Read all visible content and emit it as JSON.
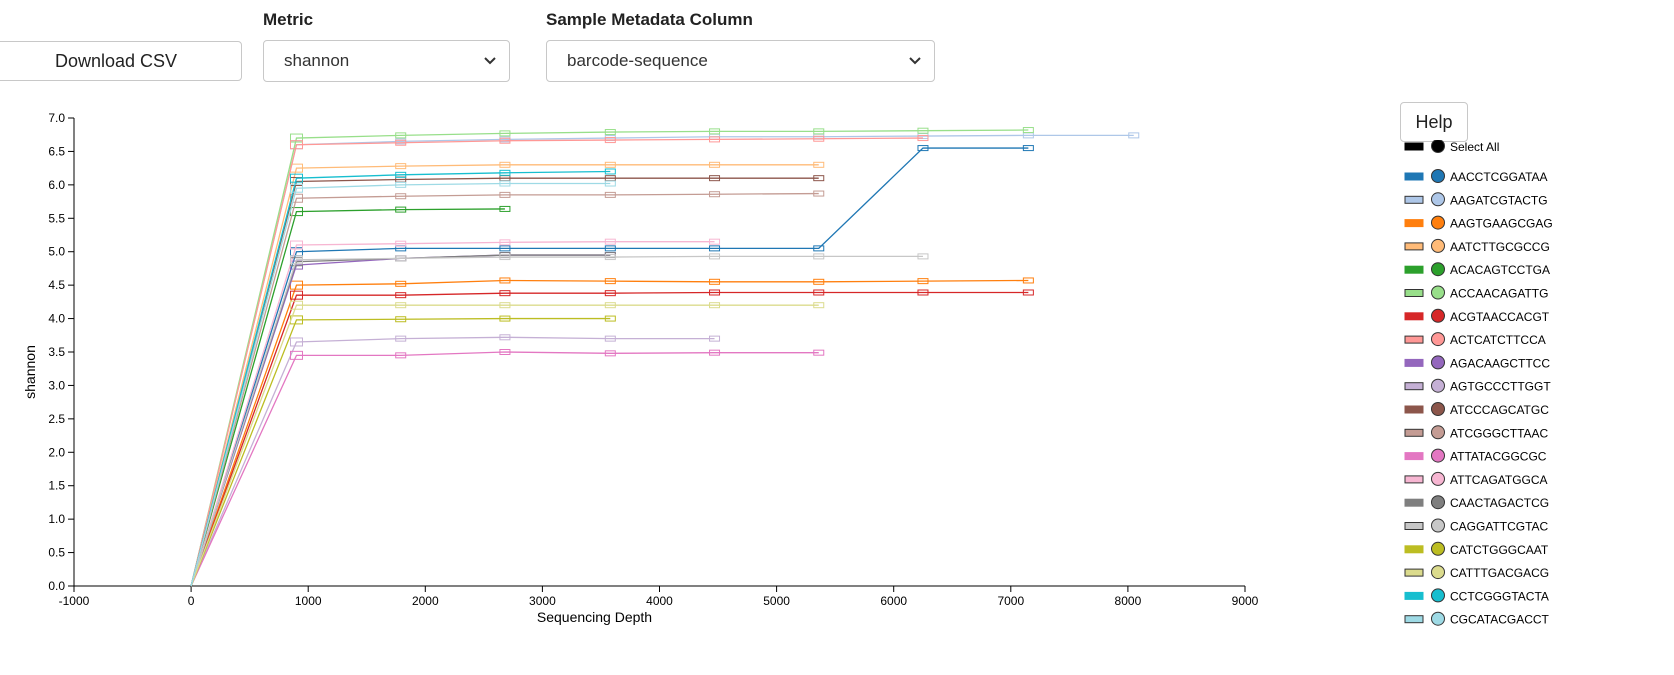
{
  "controls": {
    "download_label": "Download CSV",
    "metric_label": "Metric",
    "metric_value": "shannon",
    "metadata_label": "Sample Metadata Column",
    "metadata_value": "barcode-sequence",
    "help_label": "Help",
    "select_all_label": "Select All"
  },
  "chart_data": {
    "type": "line",
    "xlabel": "Sequencing Depth",
    "ylabel": "shannon",
    "xlim": [
      -1000,
      9000
    ],
    "ylim": [
      0,
      7
    ],
    "xticks": [
      "-1000",
      "0",
      "1000",
      "2000",
      "3000",
      "4000",
      "5000",
      "6000",
      "7000",
      "8000",
      "9000"
    ],
    "yticks": [
      "0.0",
      "0.5",
      "1.0",
      "1.5",
      "2.0",
      "2.5",
      "3.0",
      "3.5",
      "4.0",
      "4.5",
      "5.0",
      "5.5",
      "6.0",
      "6.5",
      "7.0"
    ],
    "depths": [
      0,
      900,
      1790,
      2680,
      3580,
      4470,
      5360,
      6250,
      7150,
      8050
    ],
    "legend_position": "right",
    "series": [
      {
        "name": "AACCTCGGATAA",
        "color": "#1f77b4",
        "light": false,
        "values": [
          0,
          5.0,
          5.05,
          5.05,
          5.05,
          5.05,
          5.05,
          6.55,
          6.55
        ]
      },
      {
        "name": "AAGATCGTACTG",
        "color": "#aec7e8",
        "light": true,
        "values": [
          0,
          6.6,
          6.65,
          6.68,
          6.7,
          6.72,
          6.72,
          6.73,
          6.74,
          6.74
        ]
      },
      {
        "name": "AAGTGAAGCGAG",
        "color": "#ff7f0e",
        "light": false,
        "values": [
          0,
          4.5,
          4.52,
          4.57,
          4.56,
          4.55,
          4.55,
          4.56,
          4.57
        ]
      },
      {
        "name": "AATCTTGCGCCG",
        "color": "#ffbb78",
        "light": true,
        "values": [
          0,
          6.25,
          6.28,
          6.3,
          6.3,
          6.3,
          6.3
        ]
      },
      {
        "name": "ACACAGTCCTGA",
        "color": "#2ca02c",
        "light": false,
        "values": [
          0,
          5.6,
          5.63,
          5.64
        ]
      },
      {
        "name": "ACCAACAGATTG",
        "color": "#98df8a",
        "light": true,
        "values": [
          0,
          6.7,
          6.74,
          6.77,
          6.79,
          6.8,
          6.8,
          6.81,
          6.82
        ]
      },
      {
        "name": "ACGTAACCACGT",
        "color": "#d62728",
        "light": false,
        "values": [
          0,
          4.35,
          4.35,
          4.38,
          4.38,
          4.39,
          4.39,
          4.39,
          4.39
        ]
      },
      {
        "name": "ACTCATCTTCCA",
        "color": "#ff9896",
        "light": true,
        "values": [
          0,
          6.6,
          6.63,
          6.66,
          6.67,
          6.68,
          6.69,
          6.7
        ]
      },
      {
        "name": "AGACAAGCTTCC",
        "color": "#9467bd",
        "light": false,
        "values": [
          0,
          4.8,
          4.9,
          4.95,
          4.95
        ]
      },
      {
        "name": "AGTGCCCTTGGT",
        "color": "#c5b0d5",
        "light": true,
        "values": [
          0,
          3.65,
          3.7,
          3.72,
          3.7,
          3.7
        ]
      },
      {
        "name": "ATCCCAGCATGC",
        "color": "#8c564b",
        "light": false,
        "values": [
          0,
          6.05,
          6.08,
          6.1,
          6.1,
          6.1,
          6.1
        ]
      },
      {
        "name": "ATCGGGCTTAAC",
        "color": "#c49c94",
        "light": true,
        "values": [
          0,
          5.8,
          5.83,
          5.85,
          5.85,
          5.86,
          5.87
        ]
      },
      {
        "name": "ATTATACGGCGC",
        "color": "#e377c2",
        "light": false,
        "values": [
          0,
          3.45,
          3.45,
          3.5,
          3.48,
          3.49,
          3.49
        ]
      },
      {
        "name": "ATTCAGATGGCA",
        "color": "#f7b6d2",
        "light": true,
        "values": [
          0,
          5.1,
          5.12,
          5.14,
          5.15,
          5.15
        ]
      },
      {
        "name": "CAACTAGACTCG",
        "color": "#7f7f7f",
        "light": false,
        "values": [
          0,
          4.85,
          4.9,
          4.95,
          4.95
        ]
      },
      {
        "name": "CAGGATTCGTAC",
        "color": "#c7c7c7",
        "light": true,
        "values": [
          0,
          4.88,
          4.9,
          4.92,
          4.92,
          4.93,
          4.93,
          4.93
        ]
      },
      {
        "name": "CATCTGGGCAAT",
        "color": "#bcbd22",
        "light": false,
        "values": [
          0,
          3.98,
          3.99,
          4.0,
          4.0
        ]
      },
      {
        "name": "CATTTGACGACG",
        "color": "#dbdb8d",
        "light": true,
        "values": [
          0,
          4.2,
          4.2,
          4.2,
          4.2,
          4.2,
          4.2
        ]
      },
      {
        "name": "CCTCGGGTACTA",
        "color": "#17becf",
        "light": false,
        "values": [
          0,
          6.1,
          6.15,
          6.18,
          6.2
        ]
      },
      {
        "name": "CGCATACGACCT",
        "color": "#9edae5",
        "light": true,
        "values": [
          0,
          5.95,
          6.0,
          6.02,
          6.02
        ]
      }
    ]
  }
}
